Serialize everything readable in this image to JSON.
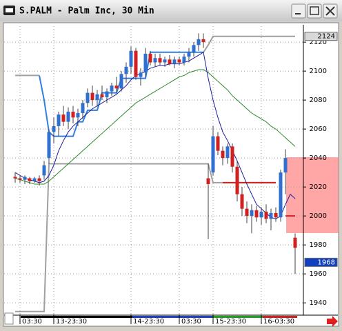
{
  "chart_data": {
    "type": "candlestick",
    "title": "S.PALM - Palm Inc, 30 Min",
    "categories": [
      null,
      "03:30",
      null,
      null,
      null,
      null,
      null,
      null,
      "13-23:30",
      null,
      null,
      null,
      null,
      null,
      null,
      null,
      null,
      null,
      null,
      null,
      null,
      null,
      null,
      null,
      "14-23:30",
      null,
      null,
      null,
      null,
      null,
      null,
      null,
      null,
      null,
      "03:30",
      null,
      null,
      null,
      null,
      null,
      null,
      "15-23:30",
      null,
      null,
      null,
      null,
      null,
      null,
      null,
      null,
      null,
      "16-03:30",
      null,
      null,
      null,
      null,
      null,
      null,
      null
    ],
    "open": [
      2027,
      2026,
      2025,
      2026,
      2024,
      2026,
      2028,
      2040,
      2058,
      2062,
      2070,
      2065,
      2072,
      2068,
      2071,
      2078,
      2085,
      2080,
      2084,
      2082,
      2086,
      2090,
      2088,
      2098,
      2103,
      2114,
      2096,
      2099,
      2112,
      2106,
      2109,
      2106,
      2108,
      2105,
      2108,
      2106,
      2110,
      2113,
      2118,
      2122,
      2026,
      2030,
      2055,
      2045,
      2040,
      2048,
      2034,
      2015,
      2005,
      2000,
      2004,
      1999,
      2003,
      1998,
      2002,
      1999,
      2030,
      null,
      1985
    ],
    "high": [
      2030,
      2028,
      2028,
      2027,
      2027,
      2028,
      2038,
      2060,
      2068,
      2072,
      2076,
      2075,
      2076,
      2074,
      2080,
      2088,
      2090,
      2087,
      2090,
      2088,
      2092,
      2096,
      2100,
      2106,
      2117,
      2116,
      2102,
      2116,
      2114,
      2112,
      2112,
      2110,
      2111,
      2110,
      2110,
      2112,
      2116,
      2120,
      2126,
      2126,
      2036,
      2062,
      2058,
      2048,
      2050,
      2050,
      2038,
      2020,
      2010,
      2008,
      2007,
      2006,
      2008,
      2005,
      2006,
      2032,
      2046,
      null,
      1988
    ],
    "low": [
      2023,
      2023,
      2022,
      2022,
      2023,
      2021,
      2025,
      2036,
      2050,
      2055,
      2062,
      2060,
      2064,
      2062,
      2067,
      2075,
      2076,
      2076,
      2080,
      2078,
      2083,
      2085,
      2086,
      2092,
      2098,
      2094,
      2090,
      2096,
      2104,
      2103,
      2104,
      2103,
      2104,
      2102,
      2104,
      2104,
      2106,
      2110,
      2114,
      2116,
      1984,
      2028,
      2042,
      2035,
      2036,
      2030,
      2010,
      2000,
      1995,
      1988,
      1996,
      1994,
      1995,
      1990,
      1996,
      1996,
      2015,
      null,
      1960
    ],
    "close": [
      2026,
      2025,
      2027,
      2024,
      2026,
      2024,
      2035,
      2058,
      2062,
      2070,
      2065,
      2072,
      2068,
      2071,
      2078,
      2085,
      2080,
      2084,
      2082,
      2086,
      2090,
      2088,
      2098,
      2103,
      2114,
      2096,
      2099,
      2112,
      2106,
      2109,
      2106,
      2108,
      2105,
      2108,
      2106,
      2110,
      2113,
      2118,
      2122,
      2120,
      2022,
      2055,
      2045,
      2040,
      2048,
      2034,
      2015,
      2005,
      2000,
      2004,
      1999,
      2003,
      1998,
      2002,
      1999,
      2030,
      2040,
      null,
      1978
    ],
    "up_color": "#2f6fd0",
    "down_color": "#d02020",
    "wick_color": "#404040",
    "lines": [
      {
        "color": "#a0a0a0",
        "width": 2,
        "values": [
          2097,
          2097,
          2097,
          2097,
          2097,
          2097,
          null,
          null,
          null,
          null,
          null,
          null,
          null,
          null,
          null,
          null,
          null,
          null,
          null,
          null,
          null,
          null,
          null,
          null,
          null,
          null,
          null,
          null,
          null,
          null,
          null,
          null,
          null,
          null,
          null,
          null,
          null,
          null,
          null,
          null,
          null,
          null,
          null,
          null,
          null,
          null,
          null,
          null,
          null,
          null,
          null,
          null,
          null,
          null,
          null,
          null,
          null,
          null,
          null
        ]
      },
      {
        "color": "#a0a0a0",
        "width": 2,
        "values": [
          1934,
          1934,
          1934,
          1934,
          1934,
          1934,
          1934,
          2036,
          2036,
          2036,
          2036,
          2036,
          2036,
          2036,
          2036,
          2036,
          2036,
          2036,
          2036,
          2036,
          2036,
          2036,
          2036,
          2036,
          2036,
          2036,
          2036,
          2036,
          2036,
          2036,
          2036,
          2036,
          2036,
          2036,
          2036,
          2036,
          2036,
          2036,
          2036,
          2036,
          2036,
          2023,
          2023,
          2023,
          2023,
          2023,
          2023,
          2023,
          2023,
          2023,
          2023,
          2023,
          2023,
          2023,
          2023,
          null,
          null,
          null,
          null
        ]
      },
      {
        "color": "#a0a0a0",
        "width": 2,
        "values": [
          null,
          null,
          null,
          null,
          null,
          null,
          null,
          null,
          null,
          null,
          null,
          null,
          null,
          null,
          null,
          null,
          null,
          null,
          null,
          null,
          null,
          null,
          null,
          null,
          null,
          null,
          null,
          null,
          null,
          null,
          null,
          null,
          null,
          null,
          null,
          null,
          null,
          null,
          null,
          2113,
          2118,
          2124,
          2124,
          2124,
          2124,
          2124,
          2124,
          2124,
          2124,
          2124,
          2124,
          2124,
          2124,
          2124,
          2124,
          2124,
          2124,
          2124,
          2124
        ]
      },
      {
        "color": "#2f7ee0",
        "width": 2,
        "values": [
          null,
          null,
          null,
          null,
          null,
          2097,
          2080,
          2058,
          2055,
          2055,
          2055,
          2055,
          2055,
          2065,
          2065,
          2073,
          2073,
          2073,
          2085,
          2085,
          2085,
          2085,
          2095,
          2095,
          2095,
          2095,
          2095,
          2095,
          2113,
          2113,
          2113,
          2113,
          2113,
          2113,
          2113,
          2113,
          2113,
          2113,
          2113,
          2113,
          null,
          null,
          null,
          null,
          null,
          null,
          null,
          null,
          null,
          null,
          null,
          null,
          null,
          null,
          null,
          null,
          null,
          null,
          null
        ]
      },
      {
        "color": "#d02020",
        "width": 2,
        "values": [
          null,
          null,
          null,
          null,
          null,
          null,
          null,
          null,
          null,
          null,
          null,
          null,
          null,
          null,
          null,
          null,
          null,
          null,
          null,
          null,
          null,
          null,
          null,
          null,
          null,
          null,
          null,
          null,
          null,
          null,
          null,
          null,
          null,
          null,
          null,
          null,
          null,
          null,
          null,
          null,
          null,
          null,
          null,
          2023,
          2023,
          2023,
          2023,
          2023,
          2023,
          2023,
          2023,
          2023,
          2023,
          2023,
          2023,
          null,
          2000,
          2000,
          2000
        ]
      },
      {
        "color": "#2a8a2a",
        "width": 1,
        "values": [
          2026,
          2025,
          2024,
          2023,
          2022,
          2022,
          2022,
          2024,
          2027,
          2030,
          2033,
          2036,
          2039,
          2042,
          2045,
          2048,
          2051,
          2054,
          2057,
          2060,
          2063,
          2066,
          2069,
          2072,
          2075,
          2078,
          2080,
          2082,
          2084,
          2086,
          2088,
          2090,
          2092,
          2094,
          2096,
          2097,
          2099,
          2100,
          2101,
          2101,
          2099,
          2096,
          2093,
          2090,
          2087,
          2083,
          2080,
          2077,
          2074,
          2071,
          2069,
          2067,
          2065,
          2062,
          2060,
          2057,
          2054,
          2051,
          2048
        ]
      },
      {
        "color": "#1a1aa0",
        "width": 1,
        "values": [
          2030,
          2028,
          2026,
          2025,
          2024,
          2023,
          2024,
          2028,
          2035,
          2045,
          2052,
          2058,
          2062,
          2065,
          2068,
          2071,
          2074,
          2076,
          2078,
          2080,
          2082,
          2084,
          2087,
          2090,
          2094,
          2097,
          2098,
          2100,
          2102,
          2103,
          2104,
          2104,
          2105,
          2105,
          2105,
          2106,
          2107,
          2109,
          2111,
          2113,
          2095,
          2080,
          2068,
          2058,
          2052,
          2045,
          2038,
          2030,
          2022,
          2015,
          2008,
          2005,
          2002,
          1999,
          1998,
          2000,
          2008,
          2015,
          2012
        ]
      }
    ],
    "price_tags": [
      {
        "value": 2124,
        "color": "#d8d8d8",
        "text_color": "#000000"
      },
      {
        "value": 1968,
        "color": "#1040c0",
        "text_color": "#ffffff"
      }
    ],
    "ylim": [
      1932,
      2131
    ],
    "yticks": [
      1940,
      1960,
      1980,
      2000,
      2020,
      2040,
      2060,
      2080,
      2100,
      2120
    ],
    "grid": true
  }
}
